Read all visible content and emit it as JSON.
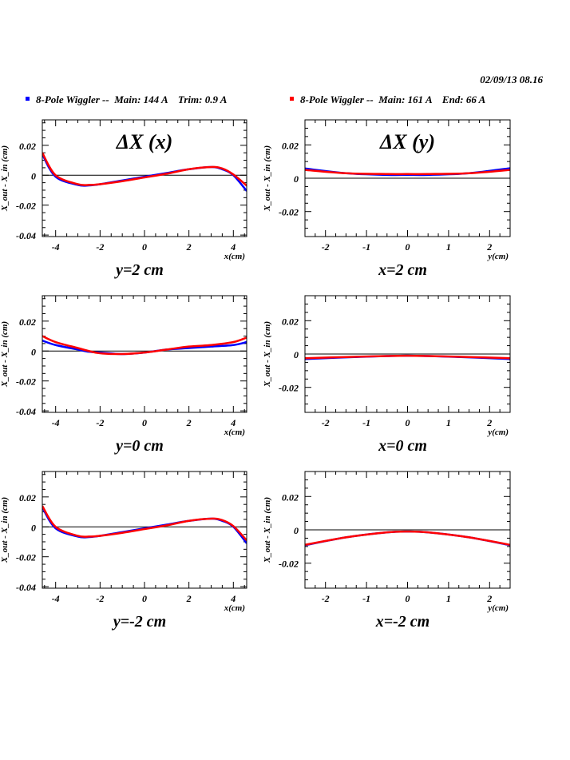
{
  "header": {
    "timestamp": "02/09/13   08.16"
  },
  "legend": [
    {
      "label": "8-Pole Wiggler --  Main: 144 A    Trim: 0.9 A",
      "color": "#0000ff"
    },
    {
      "label": "8-Pole Wiggler --  Main: 161 A    End: 66 A",
      "color": "#ff0000"
    }
  ],
  "chart_data": [
    {
      "type": "line",
      "title": "ΔX (x)",
      "caption": "y=2 cm",
      "xlabel": "x(cm)",
      "ylabel": "X_out - X_in (cm)",
      "xlim": [
        -4.6,
        4.6
      ],
      "ylim": [
        -0.041,
        0.037
      ],
      "xticks": [
        -4,
        -2,
        0,
        2,
        4
      ],
      "yticks": [
        -0.04,
        -0.02,
        0,
        0.02
      ],
      "ytick_labels": [
        "-0.04",
        "-0.02",
        "0",
        "0.02"
      ],
      "series": [
        {
          "name": "Main: 144 A Trim: 0.9 A",
          "color": "#0000ff",
          "x": [
            -4.6,
            -4,
            -3,
            -2.5,
            -2,
            -1,
            0,
            1,
            2,
            3,
            3.5,
            4,
            4.6
          ],
          "y": [
            0.014,
            -0.001,
            -0.0065,
            -0.0068,
            -0.006,
            -0.0035,
            -0.001,
            0.0015,
            0.004,
            0.0055,
            0.004,
            0.0,
            -0.0105
          ]
        },
        {
          "name": "Main: 161 A End: 66 A",
          "color": "#ff0000",
          "x": [
            -4.6,
            -4,
            -3,
            -2.5,
            -2,
            -1,
            0,
            1,
            2,
            3,
            3.5,
            4,
            4.6
          ],
          "y": [
            0.015,
            0.0,
            -0.006,
            -0.0065,
            -0.006,
            -0.004,
            -0.0015,
            0.001,
            0.004,
            0.0055,
            0.0045,
            0.0005,
            -0.007
          ]
        }
      ]
    },
    {
      "type": "line",
      "title": "ΔX (y)",
      "caption": "x=2 cm",
      "xlabel": "y(cm)",
      "ylabel": "X_out - X_in (cm)",
      "xlim": [
        -2.5,
        2.5
      ],
      "ylim": [
        -0.035,
        0.035
      ],
      "xticks": [
        -2,
        -1,
        0,
        1,
        2
      ],
      "yticks": [
        -0.02,
        0,
        0.02
      ],
      "ytick_labels": [
        "-0.02",
        "0",
        "0.02"
      ],
      "series": [
        {
          "name": "Main: 144 A Trim: 0.9 A",
          "color": "#0000ff",
          "x": [
            -2.5,
            -1.5,
            -0.5,
            0,
            0.5,
            1.5,
            2.5
          ],
          "y": [
            0.0058,
            0.003,
            0.002,
            0.002,
            0.002,
            0.003,
            0.006
          ]
        },
        {
          "name": "Main: 161 A End: 66 A",
          "color": "#ff0000",
          "x": [
            -2.5,
            -1.5,
            -0.5,
            0,
            0.5,
            1.5,
            2.5
          ],
          "y": [
            0.005,
            0.003,
            0.0025,
            0.0025,
            0.0025,
            0.003,
            0.005
          ]
        }
      ]
    },
    {
      "type": "line",
      "title": "",
      "caption": "y=0 cm",
      "xlabel": "x(cm)",
      "ylabel": "X_out - X_in (cm)",
      "xlim": [
        -4.6,
        4.6
      ],
      "ylim": [
        -0.041,
        0.037
      ],
      "xticks": [
        -4,
        -2,
        0,
        2,
        4
      ],
      "yticks": [
        -0.04,
        -0.02,
        0,
        0.02
      ],
      "ytick_labels": [
        "-0.04",
        "-0.02",
        "0",
        "0.02"
      ],
      "series": [
        {
          "name": "Main: 144 A Trim: 0.9 A",
          "color": "#0000ff",
          "x": [
            -4.6,
            -4,
            -3,
            -2.5,
            -2,
            -1,
            0,
            1,
            2,
            3,
            4,
            4.6
          ],
          "y": [
            0.007,
            0.004,
            0.001,
            -0.0005,
            -0.001,
            -0.002,
            -0.001,
            0.001,
            0.002,
            0.003,
            0.004,
            0.006
          ]
        },
        {
          "name": "Main: 161 A End: 66 A",
          "color": "#ff0000",
          "x": [
            -4.6,
            -4,
            -3,
            -2.5,
            -2,
            -1,
            0,
            1,
            2,
            3,
            4,
            4.6
          ],
          "y": [
            0.01,
            0.006,
            0.002,
            0.0,
            -0.0015,
            -0.002,
            -0.001,
            0.001,
            0.003,
            0.004,
            0.006,
            0.009
          ]
        }
      ]
    },
    {
      "type": "line",
      "title": "",
      "caption": "x=0 cm",
      "xlabel": "y(cm)",
      "ylabel": "X_out - X_in (cm)",
      "xlim": [
        -2.5,
        2.5
      ],
      "ylim": [
        -0.035,
        0.035
      ],
      "xticks": [
        -2,
        -1,
        0,
        1,
        2
      ],
      "yticks": [
        -0.02,
        0,
        0.02
      ],
      "ytick_labels": [
        "-0.02",
        "0",
        "0.02"
      ],
      "series": [
        {
          "name": "Main: 144 A Trim: 0.9 A",
          "color": "#0000ff",
          "x": [
            -2.5,
            -1.5,
            -0.5,
            0,
            0.5,
            1.5,
            2.5
          ],
          "y": [
            -0.003,
            -0.002,
            -0.0012,
            -0.001,
            -0.0012,
            -0.002,
            -0.003
          ]
        },
        {
          "name": "Main: 161 A End: 66 A",
          "color": "#ff0000",
          "x": [
            -2.5,
            -1.5,
            -0.5,
            0,
            0.5,
            1.5,
            2.5
          ],
          "y": [
            -0.0025,
            -0.0018,
            -0.0012,
            -0.001,
            -0.0012,
            -0.0018,
            -0.0025
          ]
        }
      ]
    },
    {
      "type": "line",
      "title": "",
      "caption": "y=-2 cm",
      "xlabel": "x(cm)",
      "ylabel": "X_out - X_in (cm)",
      "xlim": [
        -4.6,
        4.6
      ],
      "ylim": [
        -0.041,
        0.037
      ],
      "xticks": [
        -4,
        -2,
        0,
        2,
        4
      ],
      "yticks": [
        -0.04,
        -0.02,
        0,
        0.02
      ],
      "ytick_labels": [
        "-0.04",
        "-0.02",
        "0",
        "0.02"
      ],
      "series": [
        {
          "name": "Main: 144 A Trim: 0.9 A",
          "color": "#0000ff",
          "x": [
            -4.6,
            -4,
            -3,
            -2.5,
            -2,
            -1,
            0,
            1,
            2,
            3,
            3.5,
            4,
            4.6
          ],
          "y": [
            0.013,
            -0.001,
            -0.0065,
            -0.0068,
            -0.006,
            -0.0035,
            -0.001,
            0.0015,
            0.004,
            0.0055,
            0.004,
            0.0,
            -0.011
          ]
        },
        {
          "name": "Main: 161 A End: 66 A",
          "color": "#ff0000",
          "x": [
            -4.6,
            -4,
            -3,
            -2.5,
            -2,
            -1,
            0,
            1,
            2,
            3,
            3.5,
            4,
            4.6
          ],
          "y": [
            0.014,
            0.0,
            -0.006,
            -0.0065,
            -0.006,
            -0.004,
            -0.0015,
            0.001,
            0.004,
            0.0055,
            0.0045,
            0.0005,
            -0.009
          ]
        }
      ]
    },
    {
      "type": "line",
      "title": "",
      "caption": "x=-2 cm",
      "xlabel": "y(cm)",
      "ylabel": "X_out - X_in (cm)",
      "xlim": [
        -2.5,
        2.5
      ],
      "ylim": [
        -0.035,
        0.035
      ],
      "xticks": [
        -2,
        -1,
        0,
        1,
        2
      ],
      "yticks": [
        -0.02,
        0,
        0.02
      ],
      "ytick_labels": [
        "-0.02",
        "0",
        "0.02"
      ],
      "series": [
        {
          "name": "Main: 144 A Trim: 0.9 A",
          "color": "#0000ff",
          "x": [
            -2.5,
            -1.5,
            -0.5,
            0,
            0.5,
            1.5,
            2.5
          ],
          "y": [
            -0.0092,
            -0.0045,
            -0.0015,
            -0.001,
            -0.0015,
            -0.0045,
            -0.0092
          ]
        },
        {
          "name": "Main: 161 A End: 66 A",
          "color": "#ff0000",
          "x": [
            -2.5,
            -1.5,
            -0.5,
            0,
            0.5,
            1.5,
            2.5
          ],
          "y": [
            -0.009,
            -0.0045,
            -0.0015,
            -0.001,
            -0.0015,
            -0.0045,
            -0.009
          ]
        }
      ]
    }
  ]
}
